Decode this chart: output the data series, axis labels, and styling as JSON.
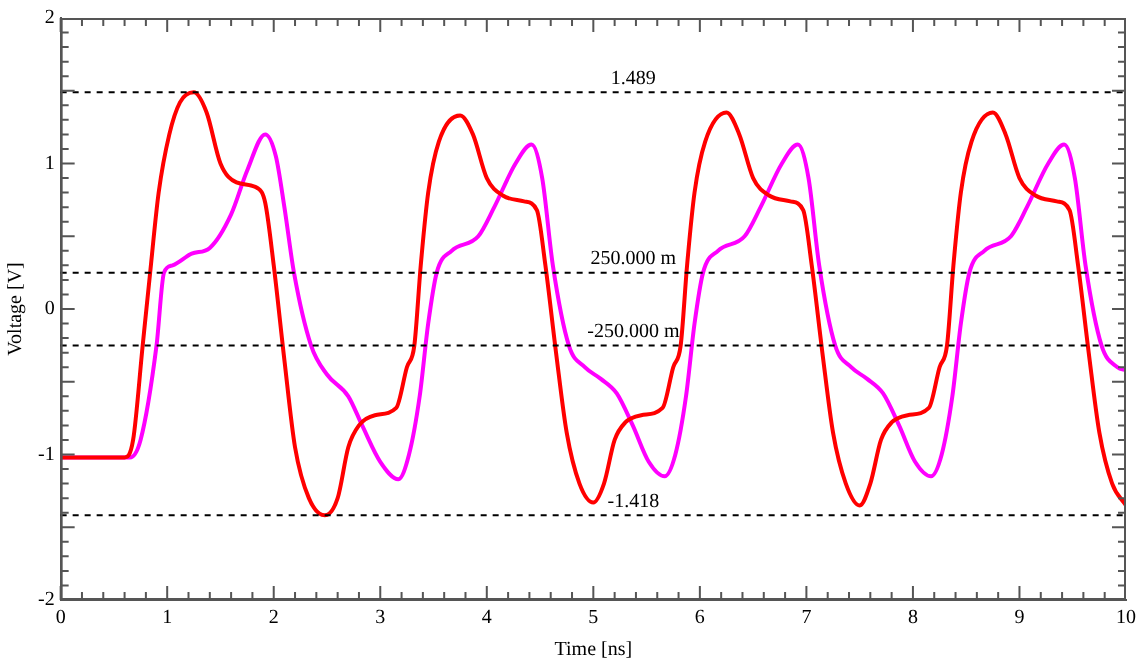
{
  "chart_data": {
    "type": "line",
    "xlabel": "Time [ns]",
    "ylabel": "Voltage [V]",
    "xlim": [
      0,
      10
    ],
    "xticks": [
      0,
      1,
      2,
      3,
      4,
      5,
      6,
      7,
      8,
      9,
      10
    ],
    "ylim": [
      -2,
      2
    ],
    "yticks": [
      -2,
      -1,
      0,
      1,
      2
    ],
    "grid": false,
    "legend": false,
    "marker": "none",
    "line_style": "solid",
    "series": [
      {
        "color": "#ff0000",
        "x": [
          0,
          0.6,
          0.68,
          0.77,
          0.84,
          0.92,
          1.02,
          1.12,
          1.25,
          1.37,
          1.5,
          1.65,
          1.85,
          1.92,
          2.0,
          2.1,
          2.2,
          2.33,
          2.48,
          2.6,
          2.7,
          2.8,
          2.95,
          3.15,
          3.25,
          3.32,
          3.38,
          3.45,
          3.55,
          3.75,
          3.87,
          4.0,
          4.15,
          4.35,
          4.47,
          4.55,
          4.65,
          4.75,
          4.87,
          5.0,
          5.1,
          5.2,
          5.3,
          5.45,
          5.65,
          5.75,
          5.82,
          5.88,
          5.95,
          6.05,
          6.25,
          6.37,
          6.5,
          6.65,
          6.85,
          6.97,
          7.05,
          7.15,
          7.25,
          7.37,
          7.5,
          7.6,
          7.7,
          7.8,
          7.95,
          8.15,
          8.25,
          8.32,
          8.38,
          8.45,
          8.55,
          8.75,
          8.87,
          9.0,
          9.15,
          9.35,
          9.47,
          9.55,
          9.65,
          9.75,
          9.87,
          10
        ],
        "values": [
          -1.02,
          -1.02,
          -0.9,
          -0.25,
          0.25,
          0.8,
          1.2,
          1.42,
          1.489,
          1.35,
          1.0,
          0.87,
          0.83,
          0.73,
          0.3,
          -0.35,
          -0.95,
          -1.3,
          -1.418,
          -1.3,
          -0.95,
          -0.8,
          -0.73,
          -0.68,
          -0.4,
          -0.25,
          0.3,
          0.8,
          1.15,
          1.33,
          1.2,
          0.9,
          0.78,
          0.74,
          0.68,
          0.3,
          -0.3,
          -0.85,
          -1.2,
          -1.33,
          -1.2,
          -0.9,
          -0.78,
          -0.73,
          -0.68,
          -0.4,
          -0.25,
          0.3,
          0.8,
          1.15,
          1.35,
          1.2,
          0.9,
          0.78,
          0.74,
          0.68,
          0.3,
          -0.3,
          -0.85,
          -1.2,
          -1.35,
          -1.2,
          -0.9,
          -0.78,
          -0.73,
          -0.68,
          -0.4,
          -0.25,
          0.3,
          0.8,
          1.15,
          1.35,
          1.2,
          0.9,
          0.78,
          0.74,
          0.68,
          0.3,
          -0.3,
          -0.85,
          -1.2,
          -1.35
        ]
      },
      {
        "color": "#ff00ff",
        "x": [
          0,
          0.65,
          0.75,
          0.9,
          0.97,
          1.05,
          1.23,
          1.4,
          1.6,
          1.75,
          1.92,
          2.02,
          2.1,
          2.19,
          2.35,
          2.5,
          2.7,
          2.83,
          3.0,
          3.17,
          3.27,
          3.37,
          3.45,
          3.53,
          3.67,
          3.92,
          4.07,
          4.27,
          4.42,
          4.52,
          4.62,
          4.77,
          4.92,
          5.07,
          5.22,
          5.37,
          5.52,
          5.67,
          5.77,
          5.87,
          5.95,
          6.03,
          6.17,
          6.42,
          6.57,
          6.77,
          6.92,
          7.02,
          7.12,
          7.27,
          7.42,
          7.57,
          7.72,
          7.87,
          8.02,
          8.17,
          8.27,
          8.37,
          8.45,
          8.53,
          8.67,
          8.92,
          9.07,
          9.27,
          9.42,
          9.52,
          9.62,
          9.77,
          9.92,
          10
        ],
        "values": [
          -1.02,
          -1.02,
          -0.9,
          -0.25,
          0.25,
          0.3,
          0.38,
          0.42,
          0.65,
          0.95,
          1.2,
          1.05,
          0.7,
          0.25,
          -0.25,
          -0.45,
          -0.6,
          -0.8,
          -1.05,
          -1.17,
          -1.0,
          -0.6,
          -0.1,
          0.25,
          0.4,
          0.5,
          0.7,
          1.0,
          1.13,
          0.9,
          0.3,
          -0.25,
          -0.4,
          -0.48,
          -0.58,
          -0.8,
          -1.05,
          -1.15,
          -1.0,
          -0.6,
          -0.1,
          0.25,
          0.4,
          0.5,
          0.7,
          1.0,
          1.13,
          0.9,
          0.3,
          -0.25,
          -0.4,
          -0.48,
          -0.58,
          -0.8,
          -1.05,
          -1.15,
          -1.0,
          -0.6,
          -0.1,
          0.25,
          0.4,
          0.5,
          0.7,
          1.0,
          1.13,
          0.9,
          0.3,
          -0.25,
          -0.4,
          -0.42
        ]
      }
    ],
    "ref_lines": [
      {
        "axis": "y",
        "value": 1.489,
        "label": "1.489",
        "color": "#000000",
        "line_style": "dashed"
      },
      {
        "axis": "y",
        "value": 0.25,
        "label": "250.000 m",
        "color": "#000000",
        "line_style": "dashed"
      },
      {
        "axis": "y",
        "value": -0.25,
        "label": "-250.000 m",
        "color": "#000000",
        "line_style": "dashed"
      },
      {
        "axis": "y",
        "value": -1.418,
        "label": "-1.418",
        "color": "#000000",
        "line_style": "dashed"
      }
    ]
  }
}
